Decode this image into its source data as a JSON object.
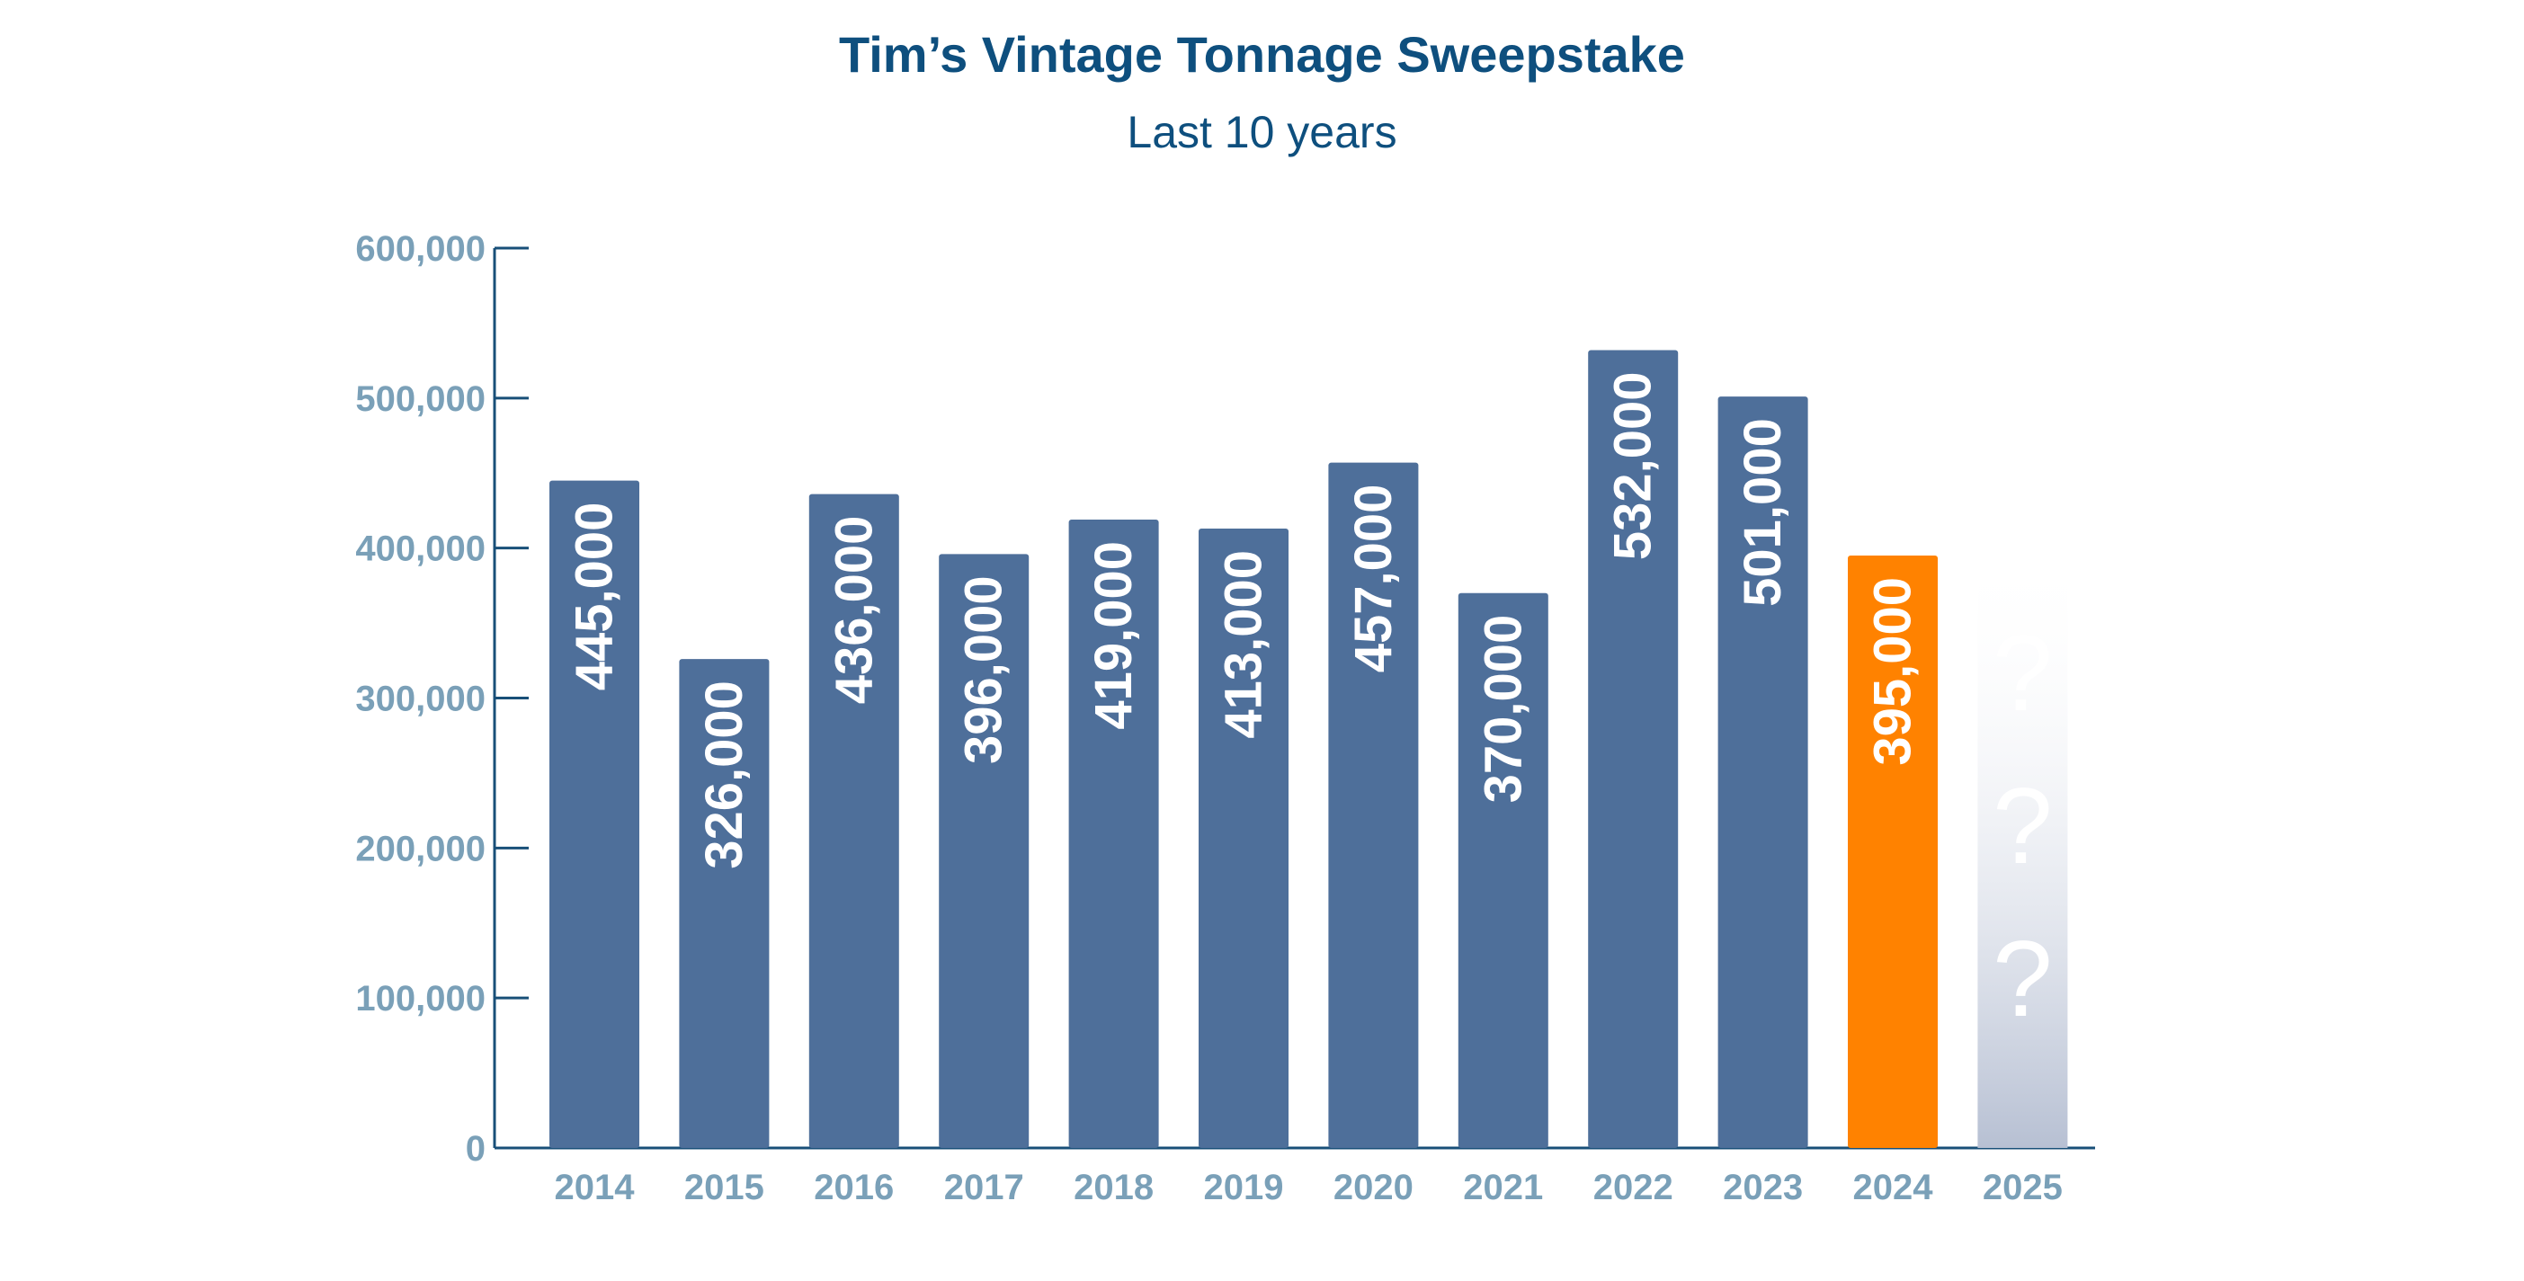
{
  "title": "Tim’s Vintage Tonnage Sweepstake",
  "subtitle": "Last 10 years",
  "colors": {
    "bar": "#4e6f9a",
    "highlight": "#ff8200",
    "future": "#b7c0d3",
    "axis": "#184f78",
    "tick_label": "#7aa0b8",
    "bar_label": "#ffffff"
  },
  "chart_data": {
    "type": "bar",
    "title": "Tim’s Vintage Tonnage Sweepstake",
    "subtitle": "Last 10 years",
    "categories": [
      "2014",
      "2015",
      "2016",
      "2017",
      "2018",
      "2019",
      "2020",
      "2021",
      "2022",
      "2023",
      "2024",
      "2025"
    ],
    "values": [
      445000,
      326000,
      436000,
      396000,
      419000,
      413000,
      457000,
      370000,
      532000,
      501000,
      395000,
      null
    ],
    "value_labels": [
      "445,000",
      "326,000",
      "436,000",
      "396,000",
      "419,000",
      "413,000",
      "457,000",
      "370,000",
      "532,000",
      "501,000",
      "395,000",
      ""
    ],
    "highlight_category": "2024",
    "unknown_category": "2025",
    "unknown_marks": [
      "?",
      "?",
      "?"
    ],
    "yticks": [
      0,
      100000,
      200000,
      300000,
      400000,
      500000,
      600000
    ],
    "ytick_labels": [
      "0",
      "100,000",
      "200,000",
      "300,000",
      "400,000",
      "500,000",
      "600,000"
    ],
    "ylim": [
      0,
      600000
    ],
    "grid": false,
    "legend": "none"
  }
}
